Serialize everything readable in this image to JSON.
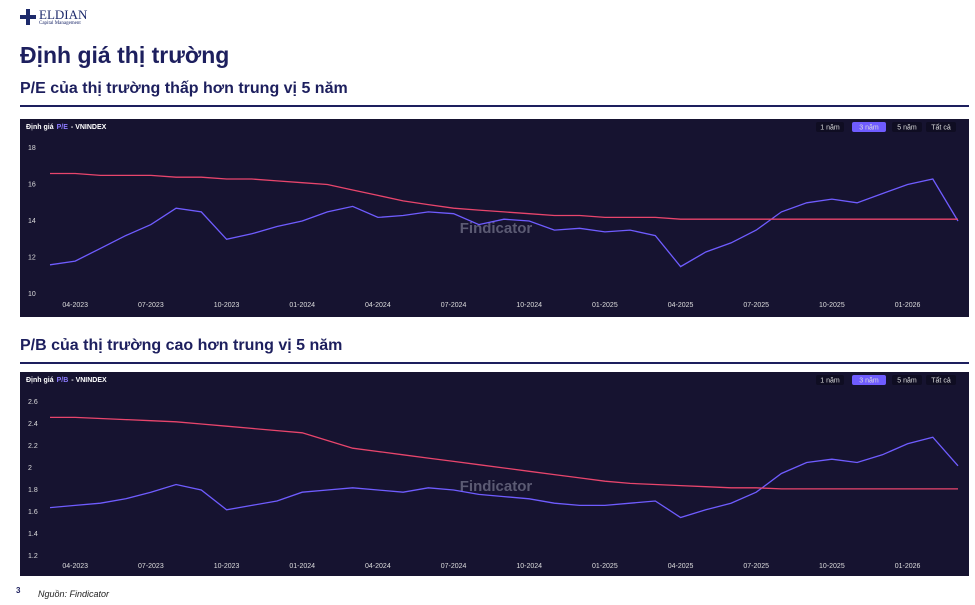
{
  "header": {
    "logo": "ELDIAN",
    "logo_sub": "Capital Management",
    "title": "Định giá thị trường"
  },
  "sections": [
    {
      "subtitle": "P/E của thị trường thấp hơn trung vị 5 năm"
    },
    {
      "subtitle": "P/B của thị trường cao hơn trung vị 5 năm"
    }
  ],
  "chart_data": [
    {
      "type": "line",
      "label": "Định giá",
      "metric": "P/E",
      "index": "- VNINDEX",
      "buttons": [
        "1 năm",
        "3 năm",
        "5 năm",
        "Tất cả"
      ],
      "active_button": 1,
      "categories": [
        null,
        "04-2023",
        null,
        null,
        "07-2023",
        null,
        null,
        "10-2023",
        null,
        null,
        "01-2024",
        null,
        null,
        "04-2024",
        null,
        null,
        "07-2024",
        null,
        null,
        "10-2024",
        null,
        null,
        "01-2025",
        null,
        null,
        "04-2025",
        null,
        null,
        "07-2025",
        null,
        null,
        "10-2025",
        null,
        null,
        "01-2026",
        null,
        null
      ],
      "series": [
        {
          "color": "#6f5cff",
          "values": [
            11.6,
            11.8,
            12.5,
            13.2,
            13.8,
            14.7,
            14.5,
            13.0,
            13.3,
            13.7,
            14.0,
            14.5,
            14.8,
            14.2,
            14.3,
            14.5,
            14.4,
            13.8,
            14.1,
            14.0,
            13.5,
            13.6,
            13.4,
            13.5,
            13.2,
            11.5,
            12.3,
            12.8,
            13.5,
            14.5,
            15.0,
            15.2,
            15.0,
            15.5,
            16.0,
            16.3,
            14.0
          ]
        },
        {
          "color": "#e8456c",
          "values": [
            16.6,
            16.6,
            16.5,
            16.5,
            16.5,
            16.4,
            16.4,
            16.3,
            16.3,
            16.2,
            16.1,
            16.0,
            15.7,
            15.4,
            15.1,
            14.9,
            14.7,
            14.6,
            14.5,
            14.4,
            14.3,
            14.3,
            14.2,
            14.2,
            14.2,
            14.1,
            14.1,
            14.1,
            14.1,
            14.1,
            14.1,
            14.1,
            14.1,
            14.1,
            14.1,
            14.1,
            14.1
          ]
        }
      ],
      "ylim": [
        10,
        18
      ],
      "yticks": [
        10,
        12,
        14,
        16,
        18
      ],
      "watermark": "Findicator"
    },
    {
      "type": "line",
      "label": "Định giá",
      "metric": "P/B",
      "index": "- VNINDEX",
      "buttons": [
        "1 năm",
        "3 năm",
        "5 năm",
        "Tất cả"
      ],
      "active_button": 1,
      "categories": [
        null,
        "04-2023",
        null,
        null,
        "07-2023",
        null,
        null,
        "10-2023",
        null,
        null,
        "01-2024",
        null,
        null,
        "04-2024",
        null,
        null,
        "07-2024",
        null,
        null,
        "10-2024",
        null,
        null,
        "01-2025",
        null,
        null,
        "04-2025",
        null,
        null,
        "07-2025",
        null,
        null,
        "10-2025",
        null,
        null,
        "01-2026",
        null,
        null
      ],
      "series": [
        {
          "color": "#6f5cff",
          "values": [
            1.64,
            1.66,
            1.68,
            1.72,
            1.78,
            1.85,
            1.8,
            1.62,
            1.66,
            1.7,
            1.78,
            1.8,
            1.82,
            1.8,
            1.78,
            1.82,
            1.8,
            1.76,
            1.74,
            1.72,
            1.68,
            1.66,
            1.66,
            1.68,
            1.7,
            1.55,
            1.62,
            1.68,
            1.78,
            1.95,
            2.05,
            2.08,
            2.05,
            2.12,
            2.22,
            2.28,
            2.02
          ]
        },
        {
          "color": "#e8456c",
          "values": [
            2.46,
            2.46,
            2.45,
            2.44,
            2.43,
            2.42,
            2.4,
            2.38,
            2.36,
            2.34,
            2.32,
            2.25,
            2.18,
            2.15,
            2.12,
            2.09,
            2.06,
            2.03,
            2.0,
            1.97,
            1.94,
            1.91,
            1.88,
            1.86,
            1.85,
            1.84,
            1.83,
            1.82,
            1.82,
            1.81,
            1.81,
            1.81,
            1.81,
            1.81,
            1.81,
            1.81,
            1.81
          ]
        }
      ],
      "ylim": [
        1.2,
        2.6
      ],
      "yticks": [
        1.2,
        1.4,
        1.6,
        1.8,
        2,
        2.2,
        2.4,
        2.6
      ],
      "watermark": "Findicator"
    }
  ],
  "footer": {
    "page": "3",
    "source": "Nguồn: Findicator"
  }
}
